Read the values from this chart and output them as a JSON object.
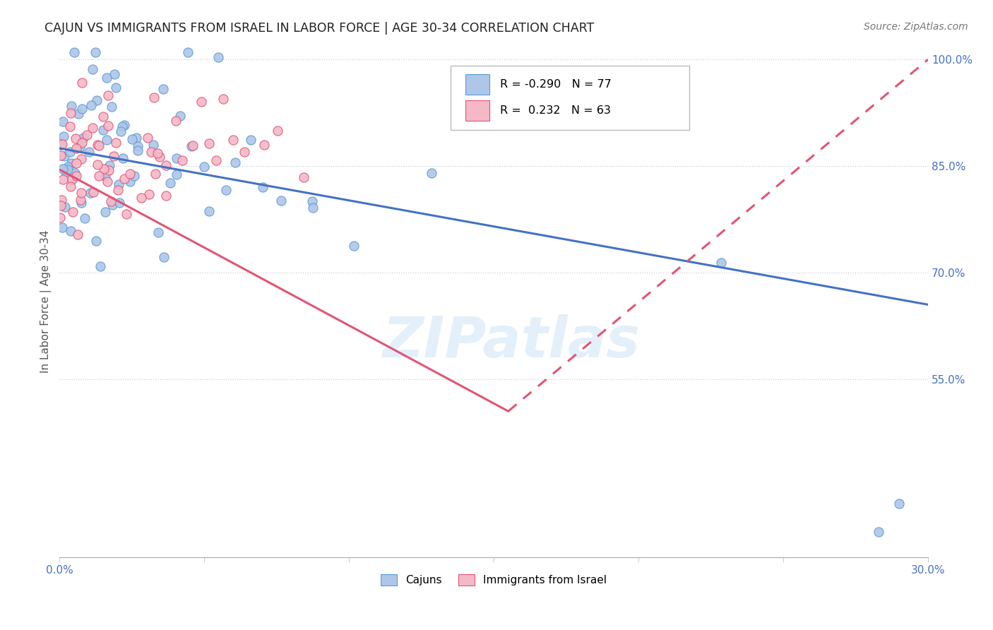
{
  "title": "CAJUN VS IMMIGRANTS FROM ISRAEL IN LABOR FORCE | AGE 30-34 CORRELATION CHART",
  "source": "Source: ZipAtlas.com",
  "ylabel_label": "In Labor Force | Age 30-34",
  "xmin": 0.0,
  "xmax": 0.3,
  "ymin": 0.3,
  "ymax": 1.02,
  "yticks": [
    1.0,
    0.85,
    0.7,
    0.55
  ],
  "ytick_labels": [
    "100.0%",
    "85.0%",
    "70.0%",
    "55.0%"
  ],
  "xticks": [
    0.0,
    0.05,
    0.1,
    0.15,
    0.2,
    0.25,
    0.3
  ],
  "xtick_labels": [
    "0.0%",
    "",
    "",
    "",
    "",
    "",
    "30.0%"
  ],
  "legend_labels": [
    "Cajuns",
    "Immigrants from Israel"
  ],
  "cajun_R": -0.29,
  "cajun_N": 77,
  "israel_R": 0.232,
  "israel_N": 63,
  "cajun_color": "#aec6e8",
  "cajun_edge_color": "#5b9bd5",
  "israel_color": "#f4b8c8",
  "israel_edge_color": "#e05575",
  "cajun_line_color": "#4472c4",
  "israel_line_color": "#e05575",
  "watermark": "ZIPatlas",
  "cajun_line_x0": 0.0,
  "cajun_line_y0": 0.875,
  "cajun_line_x1": 0.3,
  "cajun_line_y1": 0.655,
  "israel_line_x0": 0.0,
  "israel_line_y0": 0.845,
  "israel_line_x1": 0.155,
  "israel_line_y1": 0.505
}
